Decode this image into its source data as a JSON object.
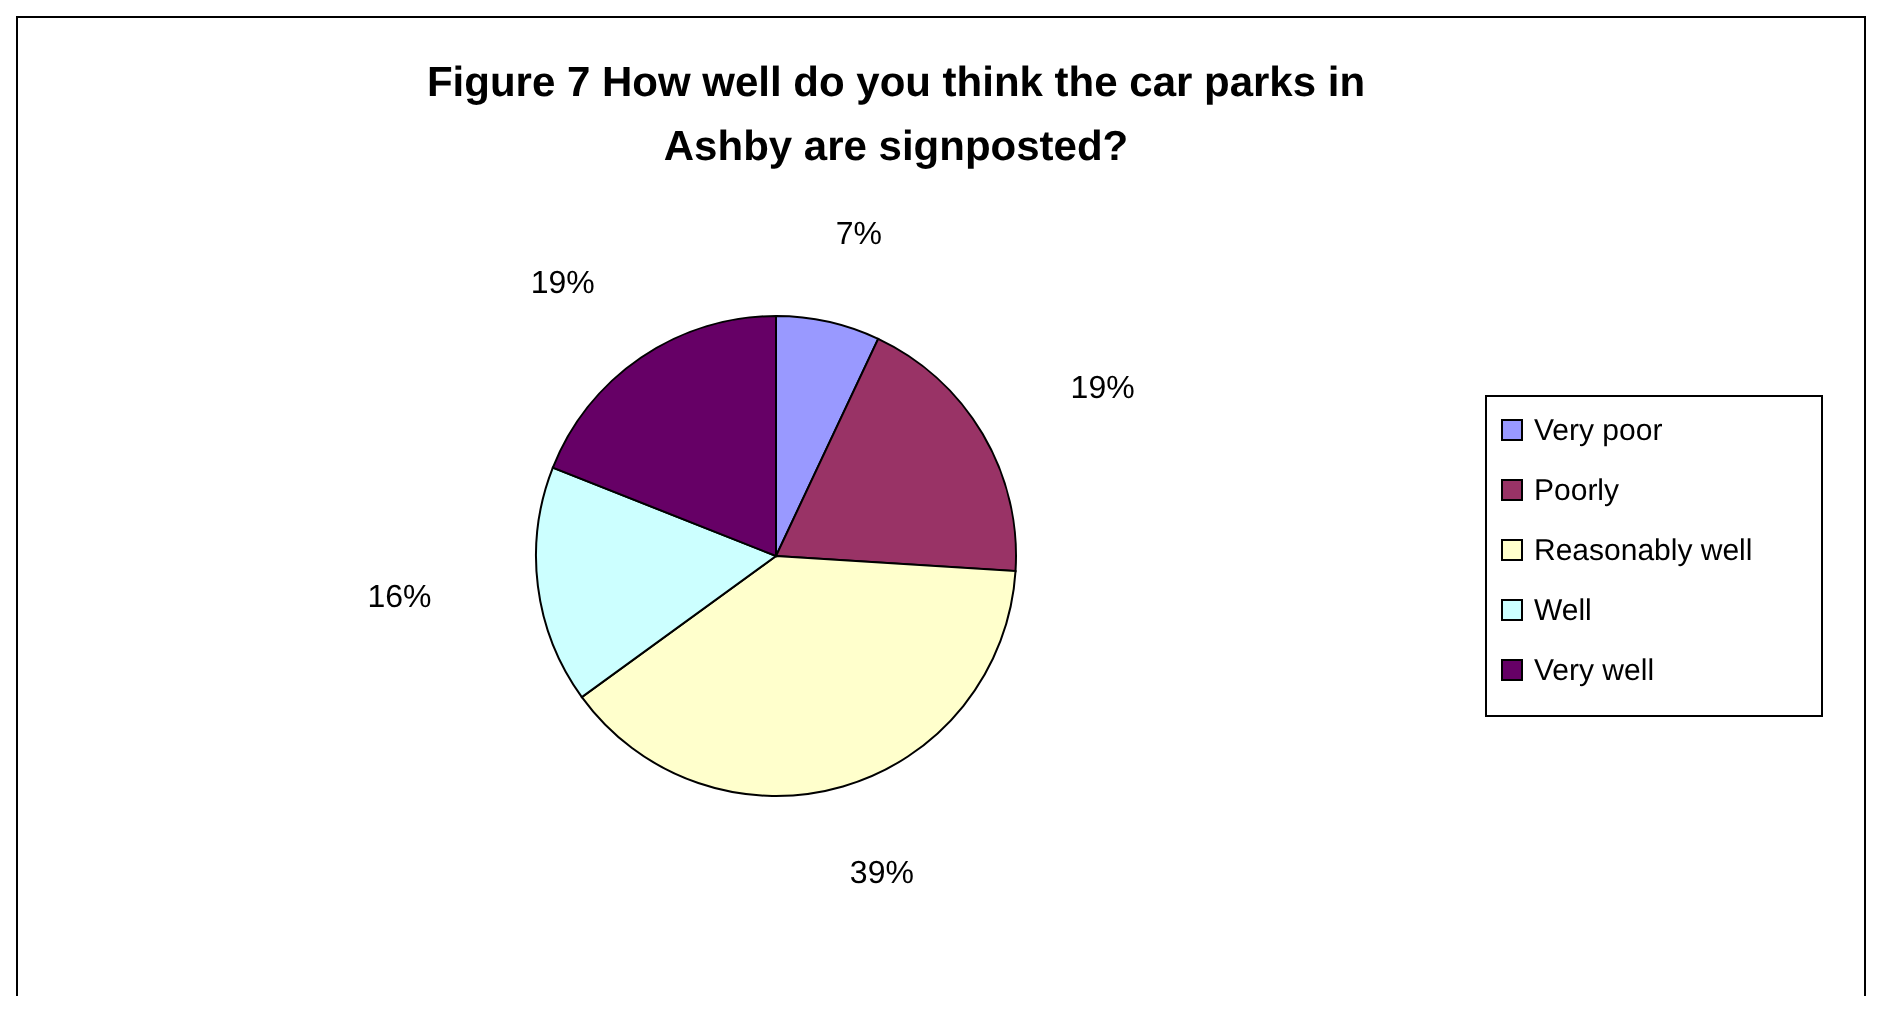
{
  "chart_data": {
    "type": "pie",
    "title": "Figure 7 How well do you think the car parks in Ashby are signposted?",
    "categories": [
      "Very poor",
      "Poorly",
      "Reasonably well",
      "Well",
      "Very well"
    ],
    "values": [
      7,
      19,
      39,
      16,
      19
    ],
    "colors": [
      "#9999ff",
      "#993366",
      "#ffffcc",
      "#ccffff",
      "#660066"
    ],
    "value_labels": [
      "7%",
      "19%",
      "39%",
      "16%",
      "19%"
    ],
    "legend": "right"
  }
}
